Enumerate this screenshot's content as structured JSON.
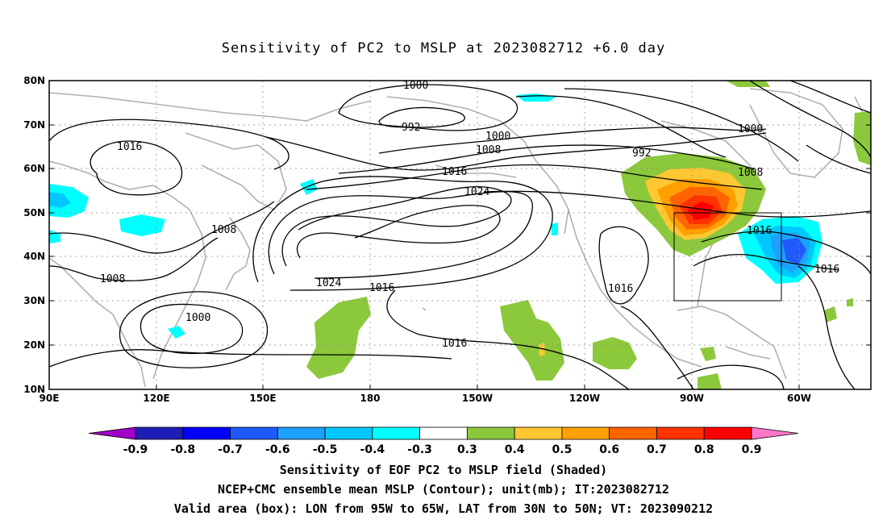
{
  "title": "Sensitivity of PC2 to MSLP at 2023082712 +6.0 day",
  "lat_ticks": [
    "80N",
    "70N",
    "60N",
    "50N",
    "40N",
    "30N",
    "20N",
    "10N"
  ],
  "lon_ticks": [
    "90E",
    "120E",
    "150E",
    "180",
    "150W",
    "120W",
    "90W",
    "60W"
  ],
  "contour_labels": [
    "1000",
    "992",
    "1016",
    "1000",
    "1008",
    "1008",
    "1016",
    "1024",
    "992",
    "1000",
    "1008",
    "1016",
    "1008",
    "1024",
    "1016",
    "1016",
    "1016",
    "1000",
    "1016",
    "1008",
    "1016"
  ],
  "colorbar": {
    "labels": [
      "-0.9",
      "-0.8",
      "-0.7",
      "-0.6",
      "-0.5",
      "-0.4",
      "-0.3",
      "0.3",
      "0.4",
      "0.5",
      "0.6",
      "0.7",
      "0.8",
      "0.9"
    ],
    "colors": [
      "#a000c8",
      "#1e1eb4",
      "#0000ff",
      "#1e5aff",
      "#1ea0ff",
      "#00c8ff",
      "#00ffff",
      "#ffffff",
      "#8cc83c",
      "#ffc832",
      "#ffa000",
      "#ff6400",
      "#ff3200",
      "#ff0000",
      "#ff78c8"
    ]
  },
  "valid_area": {
    "lon": [
      "95W",
      "65W"
    ],
    "lat": [
      "30N",
      "50N"
    ]
  },
  "captions": [
    "Sensitivity of EOF PC2 to MSLP field (Shaded)",
    "NCEP+CMC ensemble mean MSLP (Contour); unit(mb); IT:2023082712",
    "Valid area (box): LON from 95W to 65W, LAT from 30N to 50N; VT: 2023090212"
  ]
}
